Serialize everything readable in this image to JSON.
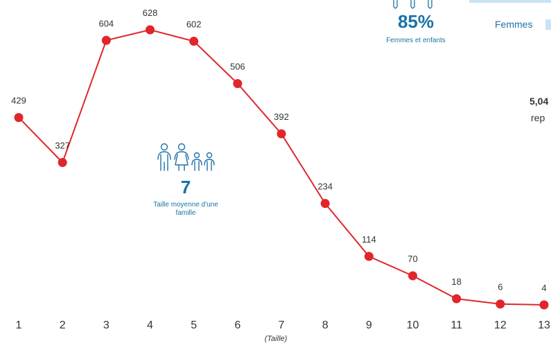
{
  "chart_data": {
    "type": "line",
    "categories": [
      "1",
      "2",
      "3",
      "4",
      "5",
      "6",
      "7",
      "8",
      "9",
      "10",
      "11",
      "12",
      "13"
    ],
    "values": [
      429,
      327,
      604,
      628,
      602,
      506,
      392,
      234,
      114,
      70,
      18,
      6,
      4
    ],
    "xlabel": "(Taille)",
    "ylim": [
      0,
      700
    ],
    "grid": false,
    "color": "#e0262b",
    "marker_color": "#e0262b"
  },
  "family_stat": {
    "value": "7",
    "caption": "Taille moyenne d'une famille",
    "icon": "family-icon",
    "color": "#1a72a6"
  },
  "women_children_stat": {
    "value": "85%",
    "caption": "Femmes et enfants",
    "icon": "women-children-icon",
    "color": "#1a72a6"
  },
  "legend": {
    "women_label": "Femmes",
    "women_color": "#c9e3f4"
  },
  "partial_text": {
    "line1": "5,04",
    "line2": "rep"
  }
}
